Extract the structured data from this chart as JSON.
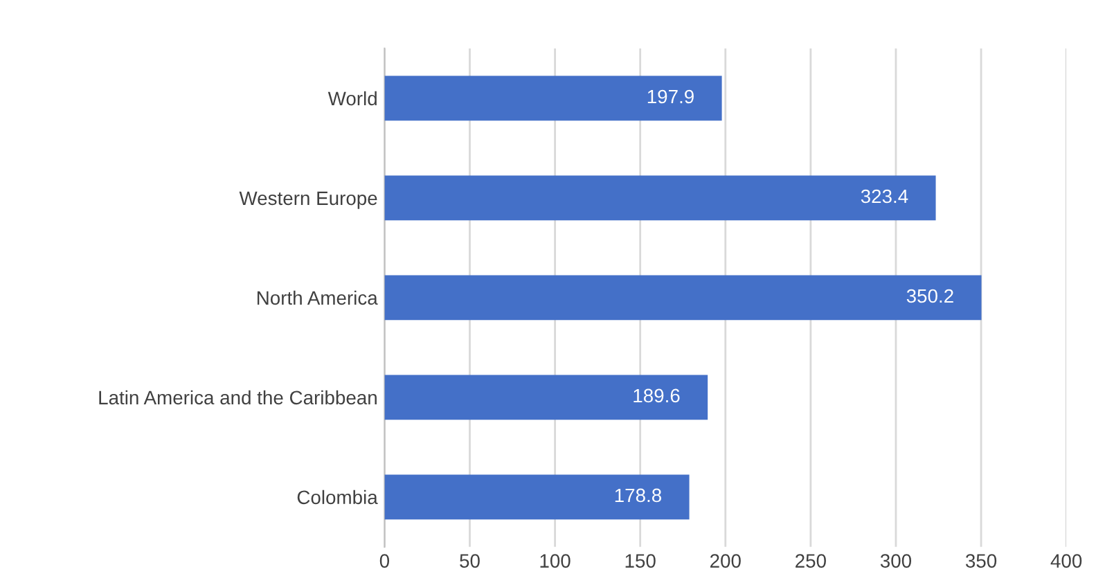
{
  "chart_data": {
    "type": "bar",
    "orientation": "horizontal",
    "categories": [
      "World",
      "Western Europe",
      "North America",
      "Latin America and the Caribbean",
      "Colombia"
    ],
    "values": [
      197.9,
      323.4,
      350.2,
      189.6,
      178.8
    ],
    "color": "#4470c8",
    "data_labels": true,
    "xlim": [
      0,
      400
    ],
    "xticks": [
      0,
      50,
      100,
      150,
      200,
      250,
      300,
      350,
      400
    ],
    "grid": "x",
    "legend": false
  }
}
